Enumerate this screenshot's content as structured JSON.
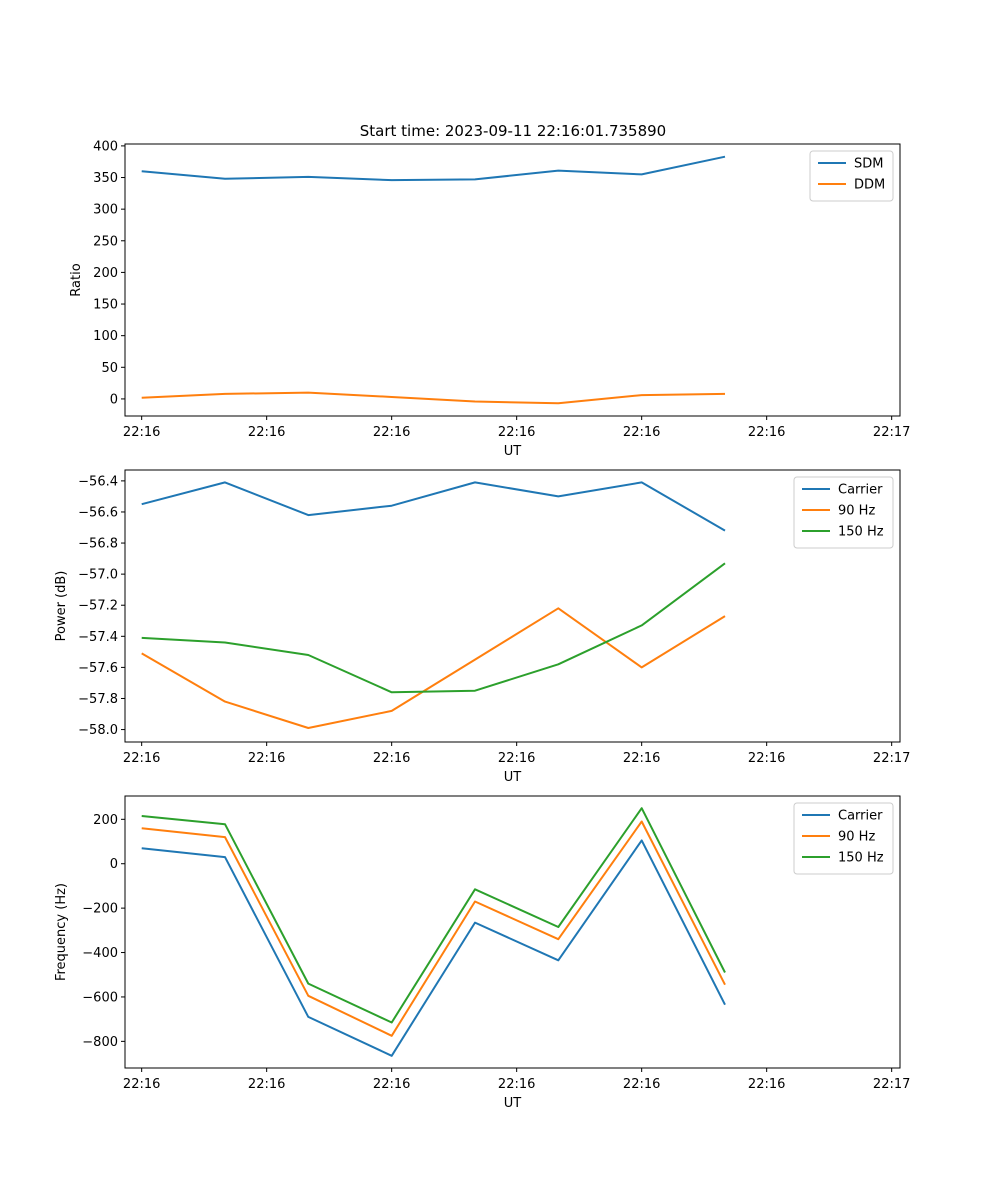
{
  "figure_title": "Start time: 2023-09-11 22:16:01.735890",
  "chart_data": [
    {
      "type": "line",
      "title": "Start time: 2023-09-11 22:16:01.735890",
      "xlabel": "UT",
      "ylabel": "Ratio",
      "x": [
        1,
        2,
        3,
        4,
        5,
        6,
        7,
        8
      ],
      "xlim": [
        0.8,
        10.1
      ],
      "xticks": [
        1,
        2.5,
        4,
        5.5,
        7,
        8.5,
        10
      ],
      "xtick_labels": [
        "22:16",
        "22:16",
        "22:16",
        "22:16",
        "22:16",
        "22:16",
        "22:17"
      ],
      "ylim": [
        -27,
        403
      ],
      "yticks": [
        0,
        50,
        100,
        150,
        200,
        250,
        300,
        350,
        400
      ],
      "ytick_labels": [
        "0",
        "50",
        "100",
        "150",
        "200",
        "250",
        "300",
        "350",
        "400"
      ],
      "legend_position": "top-right",
      "series": [
        {
          "name": "SDM",
          "color": "#1f77b4",
          "values": [
            360,
            348,
            351,
            346,
            347,
            361,
            355,
            383
          ]
        },
        {
          "name": "DDM",
          "color": "#ff7f0e",
          "values": [
            2,
            8,
            10,
            3,
            -4,
            -7,
            6,
            8
          ]
        }
      ]
    },
    {
      "type": "line",
      "title": "",
      "xlabel": "UT",
      "ylabel": "Power (dB)",
      "x": [
        1,
        2,
        3,
        4,
        5,
        6,
        7,
        8
      ],
      "xlim": [
        0.8,
        10.1
      ],
      "xticks": [
        1,
        2.5,
        4,
        5.5,
        7,
        8.5,
        10
      ],
      "xtick_labels": [
        "22:16",
        "22:16",
        "22:16",
        "22:16",
        "22:16",
        "22:16",
        "22:17"
      ],
      "ylim": [
        -58.08,
        -56.33
      ],
      "yticks": [
        -58.0,
        -57.8,
        -57.6,
        -57.4,
        -57.2,
        -57.0,
        -56.8,
        -56.6,
        -56.4
      ],
      "ytick_labels": [
        "−58.0",
        "−57.8",
        "−57.6",
        "−57.4",
        "−57.2",
        "−57.0",
        "−56.8",
        "−56.6",
        "−56.4"
      ],
      "legend_position": "top-right",
      "series": [
        {
          "name": "Carrier",
          "color": "#1f77b4",
          "values": [
            -56.55,
            -56.41,
            -56.62,
            -56.56,
            -56.41,
            -56.5,
            -56.41,
            -56.72
          ]
        },
        {
          "name": "90 Hz",
          "color": "#ff7f0e",
          "values": [
            -57.51,
            -57.82,
            -57.99,
            -57.88,
            -57.55,
            -57.22,
            -57.6,
            -57.27
          ]
        },
        {
          "name": "150 Hz",
          "color": "#2ca02c",
          "values": [
            -57.41,
            -57.44,
            -57.52,
            -57.76,
            -57.75,
            -57.58,
            -57.33,
            -56.93
          ]
        }
      ]
    },
    {
      "type": "line",
      "title": "",
      "xlabel": "UT",
      "ylabel": "Frequency (Hz)",
      "x": [
        1,
        2,
        3,
        4,
        5,
        6,
        7,
        8
      ],
      "xlim": [
        0.8,
        10.1
      ],
      "xticks": [
        1,
        2.5,
        4,
        5.5,
        7,
        8.5,
        10
      ],
      "xtick_labels": [
        "22:16",
        "22:16",
        "22:16",
        "22:16",
        "22:16",
        "22:16",
        "22:17"
      ],
      "ylim": [
        -920,
        305
      ],
      "yticks": [
        -800,
        -600,
        -400,
        -200,
        0,
        200
      ],
      "ytick_labels": [
        "−800",
        "−600",
        "−400",
        "−200",
        "0",
        "200"
      ],
      "legend_position": "top-right",
      "series": [
        {
          "name": "Carrier",
          "color": "#1f77b4",
          "values": [
            70,
            30,
            -690,
            -865,
            -265,
            -435,
            105,
            -635
          ]
        },
        {
          "name": "90 Hz",
          "color": "#ff7f0e",
          "values": [
            160,
            120,
            -595,
            -775,
            -170,
            -340,
            190,
            -545
          ]
        },
        {
          "name": "150 Hz",
          "color": "#2ca02c",
          "values": [
            215,
            178,
            -540,
            -715,
            -115,
            -285,
            250,
            -490
          ]
        }
      ]
    }
  ]
}
